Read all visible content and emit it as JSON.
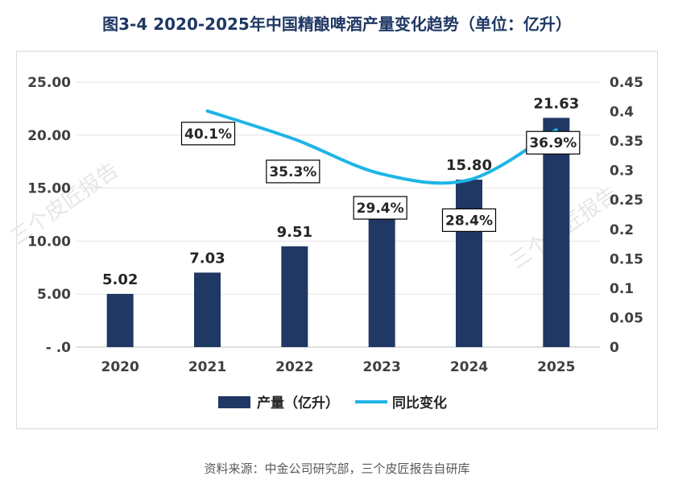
{
  "title": "图3-4 2020-2025年中国精酿啤酒产量变化趋势（单位：亿升）",
  "source": "资料来源：中金公司研究部，三个皮匠报告自研库",
  "watermark": "三个皮匠报告",
  "colors": {
    "bar": "#203864",
    "line": "#1fb4e6",
    "title": "#1f3864",
    "axis_text": "#404040"
  },
  "chart_data": {
    "type": "bar+line",
    "categories": [
      "2020",
      "2021",
      "2022",
      "2023",
      "2024",
      "2025"
    ],
    "series": [
      {
        "name": "产量（亿升）",
        "type": "bar",
        "axis": "left",
        "values": [
          5.02,
          7.03,
          9.51,
          12.31,
          15.8,
          21.63
        ],
        "labels": [
          "5.02",
          "7.03",
          "9.51",
          "12.31",
          "15.80",
          "21.63"
        ]
      },
      {
        "name": "同比变化",
        "type": "line",
        "axis": "right",
        "values": [
          null,
          0.401,
          0.353,
          0.294,
          0.284,
          0.369
        ],
        "labels": [
          "",
          "40.1%",
          "35.3%",
          "29.4%",
          "28.4%",
          "36.9%"
        ]
      }
    ],
    "left_axis": {
      "min": 0,
      "max": 25,
      "ticks": [
        "- .0",
        "5.00",
        "10.00",
        "15.00",
        "20.00",
        "25.00"
      ]
    },
    "right_axis": {
      "min": 0,
      "max": 0.45,
      "ticks": [
        "0",
        "0.05",
        "0.1",
        "0.15",
        "0.2",
        "0.25",
        "0.3",
        "0.35",
        "0.4",
        "0.45"
      ]
    },
    "grid": true,
    "legend_position": "bottom"
  }
}
